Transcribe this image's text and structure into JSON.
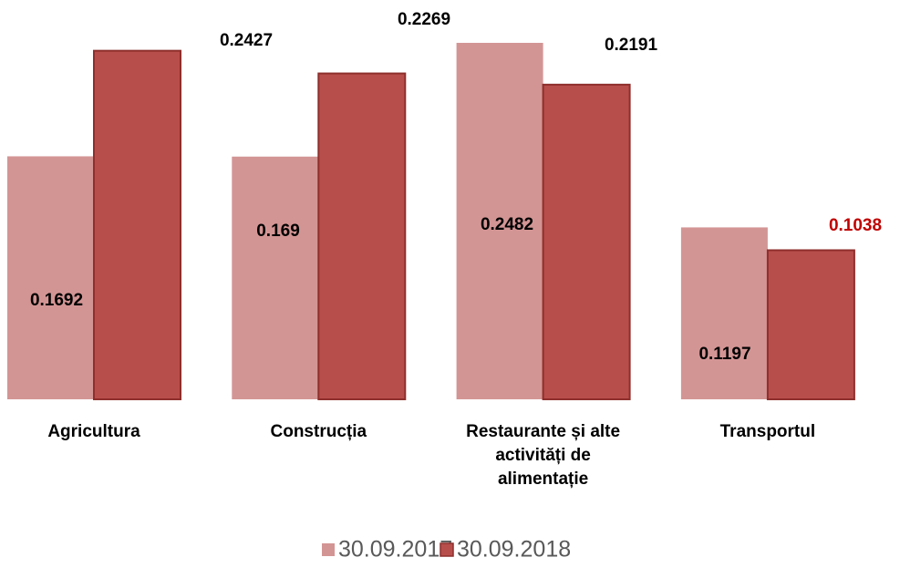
{
  "chart_data": {
    "type": "bar",
    "categories": [
      "Agricultura",
      "Construcția",
      "Restaurante și alte activități de alimentație",
      "Transportul"
    ],
    "series": [
      {
        "name": "30.09.2017",
        "color": "#d39594",
        "values": [
          0.1692,
          0.169,
          0.2482,
          0.1197
        ],
        "label_colors": [
          "#000000",
          "#000000",
          "#000000",
          "#000000"
        ]
      },
      {
        "name": "30.09.2018",
        "color": "#b84e4b",
        "values": [
          0.2427,
          0.2269,
          0.2191,
          0.1038
        ],
        "label_colors": [
          "#000000",
          "#000000",
          "#000000",
          "#c00000"
        ]
      }
    ],
    "legend": "bottom"
  }
}
